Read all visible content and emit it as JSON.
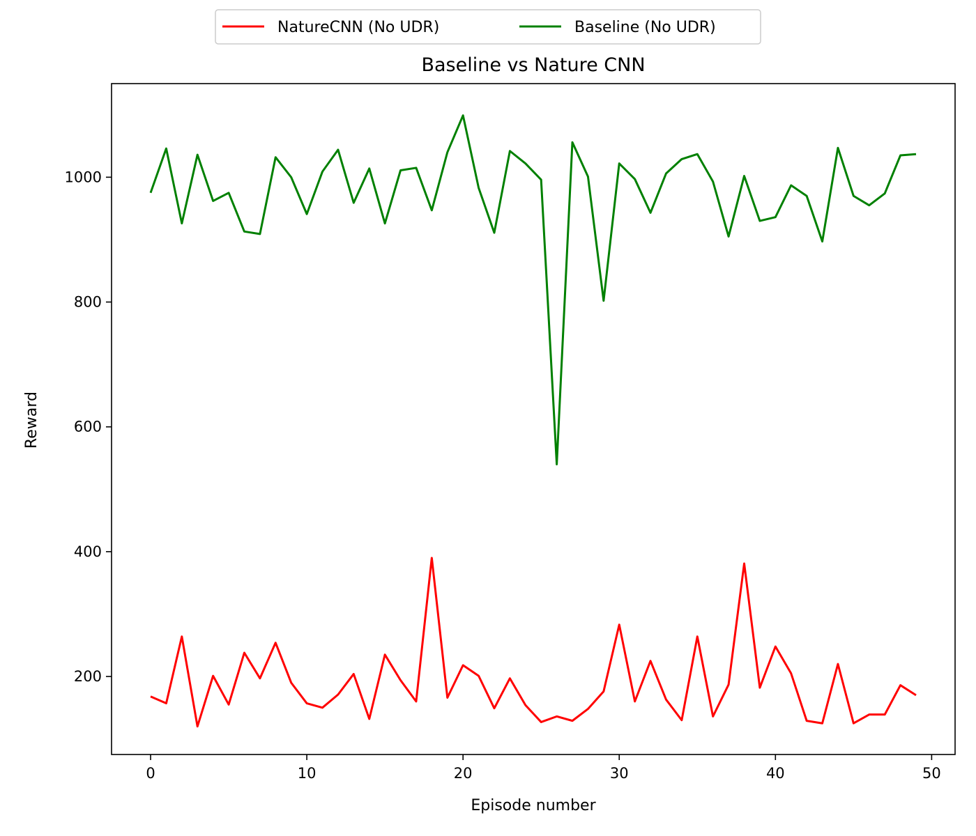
{
  "chart_data": {
    "type": "line",
    "title": "Baseline vs Nature CNN",
    "xlabel": "Episode number",
    "ylabel": "Reward",
    "xlim": [
      -2.5,
      51.5
    ],
    "ylim": [
      75,
      1150
    ],
    "xticks": [
      0,
      10,
      20,
      30,
      40,
      50
    ],
    "yticks": [
      200,
      400,
      600,
      800,
      1000
    ],
    "grid": false,
    "legend_position": "top-center",
    "x": [
      0,
      1,
      2,
      3,
      4,
      5,
      6,
      7,
      8,
      9,
      10,
      11,
      12,
      13,
      14,
      15,
      16,
      17,
      18,
      19,
      20,
      21,
      22,
      23,
      24,
      25,
      26,
      27,
      28,
      29,
      30,
      31,
      32,
      33,
      34,
      35,
      36,
      37,
      38,
      39,
      40,
      41,
      42,
      43,
      44,
      45,
      46,
      47,
      48,
      49
    ],
    "series": [
      {
        "name": "NatureCNN (No UDR)",
        "color": "#ff0000",
        "values": [
          168,
          157,
          264,
          120,
          201,
          155,
          238,
          197,
          254,
          190,
          157,
          150,
          171,
          204,
          132,
          235,
          194,
          160,
          390,
          166,
          218,
          201,
          149,
          197,
          154,
          127,
          136,
          129,
          148,
          176,
          283,
          160,
          225,
          163,
          130,
          264,
          136,
          187,
          381,
          182,
          248,
          205,
          129,
          125,
          220,
          125,
          139,
          139,
          186,
          170
        ]
      },
      {
        "name": "Baseline (No UDR)",
        "color": "#008000",
        "values": [
          975,
          1046,
          926,
          1036,
          962,
          975,
          913,
          909,
          1032,
          1000,
          941,
          1009,
          1044,
          959,
          1014,
          926,
          1011,
          1015,
          947,
          1040,
          1099,
          983,
          911,
          1042,
          1022,
          996,
          540,
          1056,
          1001,
          802,
          1022,
          997,
          943,
          1006,
          1029,
          1037,
          993,
          905,
          1002,
          930,
          936,
          987,
          970,
          897,
          1047,
          970,
          955,
          974,
          1035,
          1037
        ]
      }
    ]
  }
}
